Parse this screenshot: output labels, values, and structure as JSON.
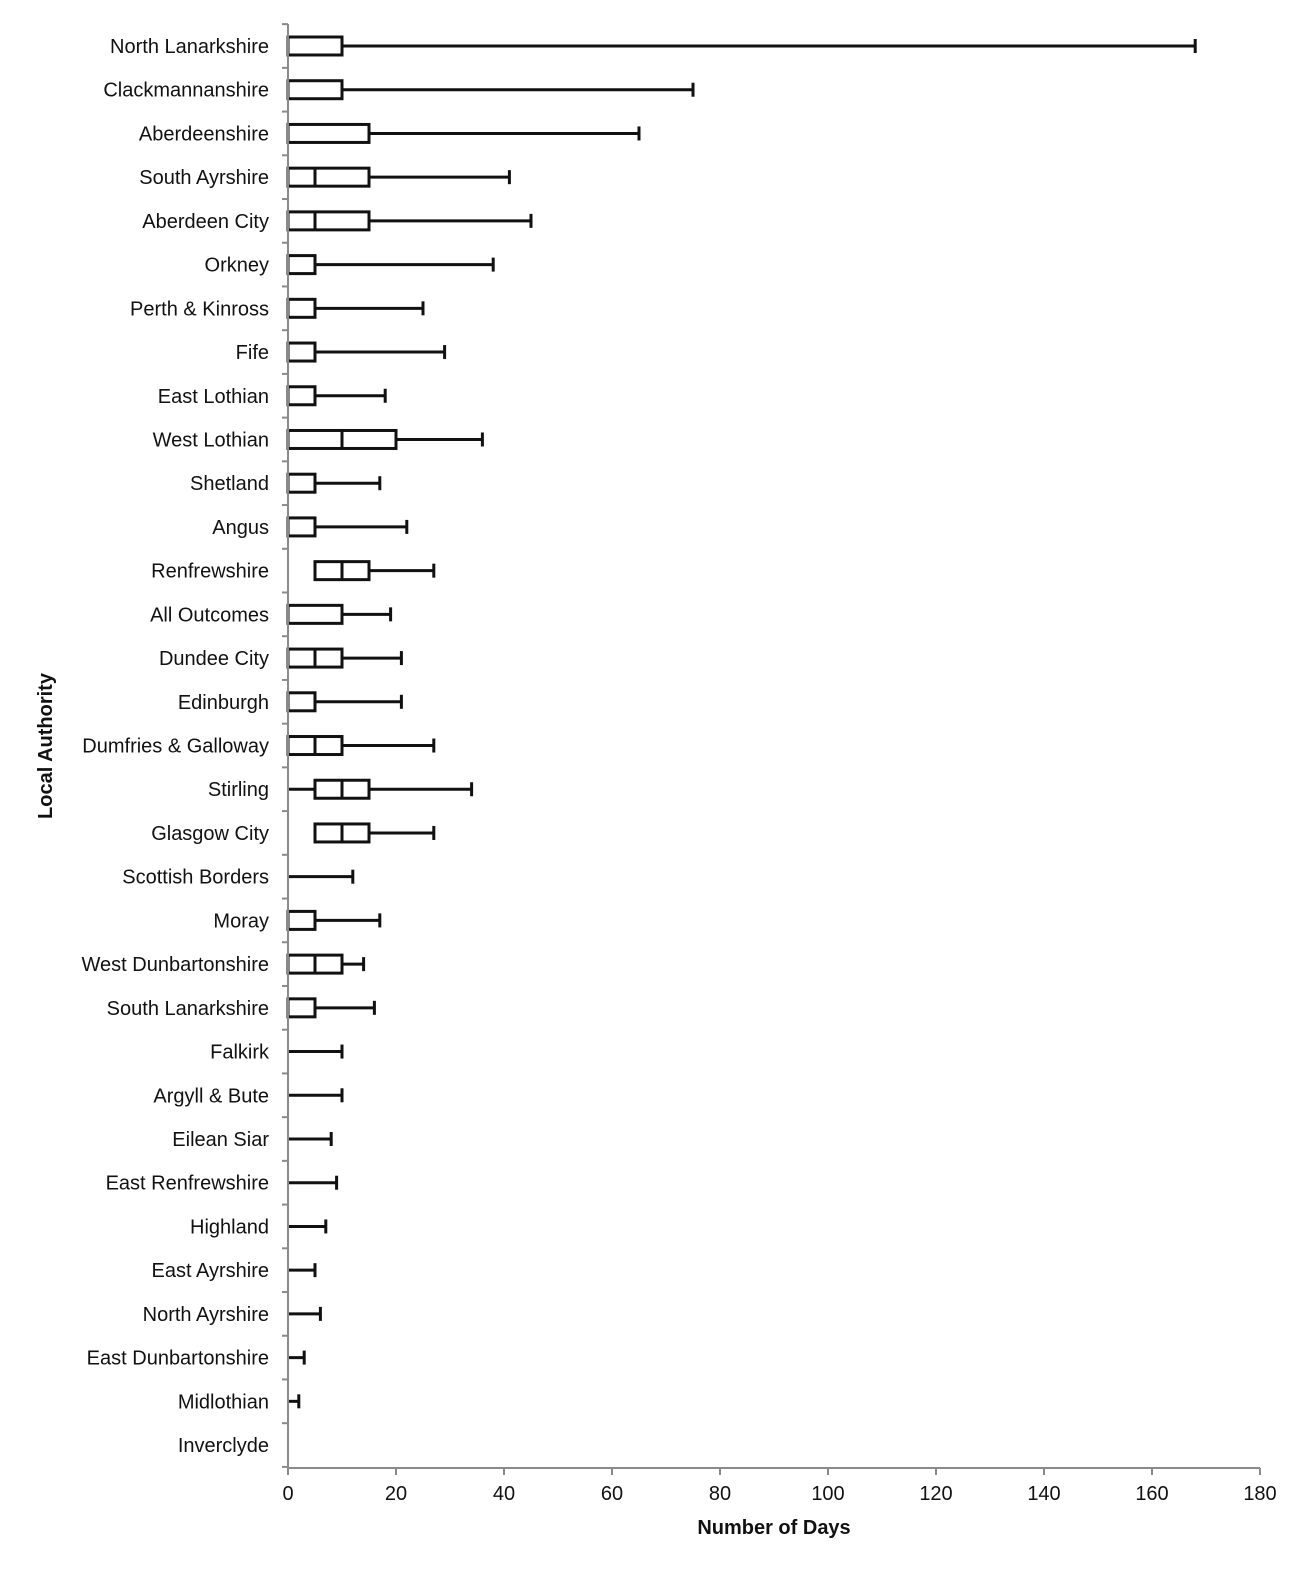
{
  "chart_data": {
    "type": "boxplot",
    "orientation": "horizontal",
    "xlabel": "Number of Days",
    "ylabel": "Local Authority",
    "xlim": [
      0,
      180
    ],
    "x_ticks": [
      0,
      20,
      40,
      60,
      80,
      100,
      120,
      140,
      160,
      180
    ],
    "legend": "none",
    "grid": false,
    "series": [
      {
        "category": "North Lanarkshire",
        "min": 0,
        "q1": 0,
        "median": 0,
        "q3": 10,
        "max": 168
      },
      {
        "category": "Clackmannanshire",
        "min": 0,
        "q1": 0,
        "median": 0,
        "q3": 10,
        "max": 75
      },
      {
        "category": "Aberdeenshire",
        "min": 0,
        "q1": 0,
        "median": 0,
        "q3": 15,
        "max": 65
      },
      {
        "category": "South Ayrshire",
        "min": 0,
        "q1": 0,
        "median": 5,
        "q3": 15,
        "max": 41
      },
      {
        "category": "Aberdeen City",
        "min": 0,
        "q1": 0,
        "median": 5,
        "q3": 15,
        "max": 45
      },
      {
        "category": "Orkney",
        "min": 0,
        "q1": 0,
        "median": 0,
        "q3": 5,
        "max": 38
      },
      {
        "category": "Perth & Kinross",
        "min": 0,
        "q1": 0,
        "median": 0,
        "q3": 5,
        "max": 25
      },
      {
        "category": "Fife",
        "min": 0,
        "q1": 0,
        "median": 0,
        "q3": 5,
        "max": 29
      },
      {
        "category": "East Lothian",
        "min": 0,
        "q1": 0,
        "median": 0,
        "q3": 5,
        "max": 18
      },
      {
        "category": "West Lothian",
        "min": 0,
        "q1": 0,
        "median": 10,
        "q3": 20,
        "max": 36
      },
      {
        "category": "Shetland",
        "min": 0,
        "q1": 0,
        "median": 0,
        "q3": 5,
        "max": 17
      },
      {
        "category": "Angus",
        "min": 0,
        "q1": 0,
        "median": 0,
        "q3": 5,
        "max": 22
      },
      {
        "category": "Renfrewshire",
        "min": 5,
        "q1": 5,
        "median": 10,
        "q3": 15,
        "max": 27
      },
      {
        "category": "All Outcomes",
        "min": 0,
        "q1": 0,
        "median": 0,
        "q3": 10,
        "max": 19
      },
      {
        "category": "Dundee City",
        "min": 0,
        "q1": 0,
        "median": 5,
        "q3": 10,
        "max": 21
      },
      {
        "category": "Edinburgh",
        "min": 0,
        "q1": 0,
        "median": 0,
        "q3": 5,
        "max": 21
      },
      {
        "category": "Dumfries & Galloway",
        "min": 0,
        "q1": 0,
        "median": 5,
        "q3": 10,
        "max": 27
      },
      {
        "category": "Stirling",
        "min": 0,
        "q1": 5,
        "median": 10,
        "q3": 15,
        "max": 34
      },
      {
        "category": "Glasgow City",
        "min": 5,
        "q1": 5,
        "median": 10,
        "q3": 15,
        "max": 27
      },
      {
        "category": "Scottish Borders",
        "min": 0,
        "q1": 0,
        "median": 0,
        "q3": 0,
        "max": 12
      },
      {
        "category": "Moray",
        "min": 0,
        "q1": 0,
        "median": 0,
        "q3": 5,
        "max": 17
      },
      {
        "category": "West Dunbartonshire",
        "min": 0,
        "q1": 0,
        "median": 5,
        "q3": 10,
        "max": 14
      },
      {
        "category": "South Lanarkshire",
        "min": 0,
        "q1": 0,
        "median": 0,
        "q3": 5,
        "max": 16
      },
      {
        "category": "Falkirk",
        "min": 0,
        "q1": 0,
        "median": 0,
        "q3": 0,
        "max": 10
      },
      {
        "category": "Argyll & Bute",
        "min": 0,
        "q1": 0,
        "median": 0,
        "q3": 0,
        "max": 10
      },
      {
        "category": "Eilean Siar",
        "min": 0,
        "q1": 0,
        "median": 0,
        "q3": 0,
        "max": 8
      },
      {
        "category": "East Renfrewshire",
        "min": 0,
        "q1": 0,
        "median": 0,
        "q3": 0,
        "max": 9
      },
      {
        "category": "Highland",
        "min": 0,
        "q1": 0,
        "median": 0,
        "q3": 0,
        "max": 7
      },
      {
        "category": "East Ayrshire",
        "min": 0,
        "q1": 0,
        "median": 0,
        "q3": 0,
        "max": 5
      },
      {
        "category": "North Ayrshire",
        "min": 0,
        "q1": 0,
        "median": 0,
        "q3": 0,
        "max": 6
      },
      {
        "category": "East Dunbartonshire",
        "min": 0,
        "q1": 0,
        "median": 0,
        "q3": 0,
        "max": 3
      },
      {
        "category": "Midlothian",
        "min": 0,
        "q1": 0,
        "median": 0,
        "q3": 0,
        "max": 2
      },
      {
        "category": "Inverclyde",
        "min": 0,
        "q1": 0,
        "median": 0,
        "q3": 0,
        "max": 0
      }
    ]
  }
}
